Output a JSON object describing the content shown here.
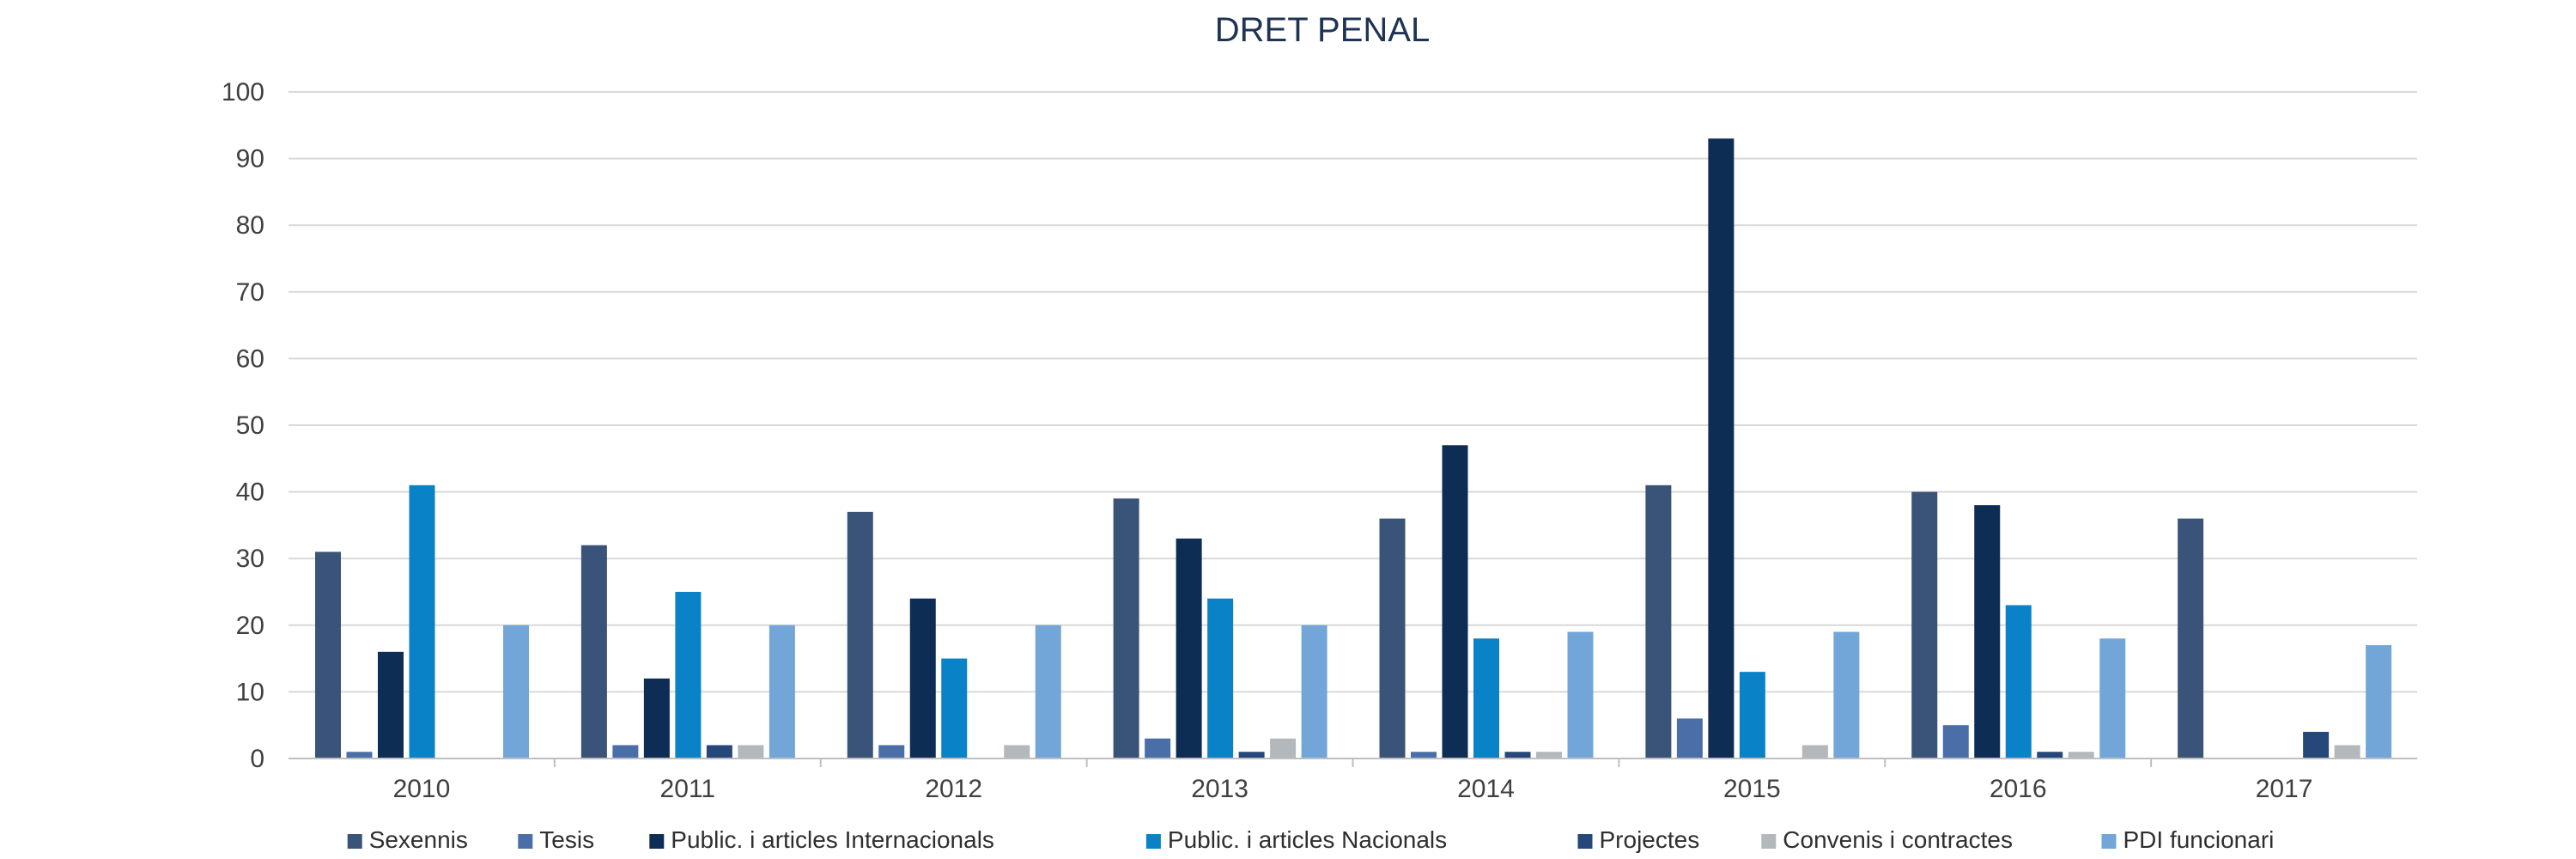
{
  "chart_data": {
    "type": "bar",
    "title": "DRET PENAL",
    "xlabel": "",
    "ylabel": "",
    "ylim": [
      0,
      100
    ],
    "yticks": [
      0,
      10,
      20,
      30,
      40,
      50,
      60,
      70,
      80,
      90,
      100
    ],
    "grid": true,
    "legend_position": "bottom",
    "categories": [
      "2010",
      "2011",
      "2012",
      "2013",
      "2014",
      "2015",
      "2016",
      "2017"
    ],
    "series": [
      {
        "name": "Sexennis",
        "color": "#3a5378",
        "values": [
          31,
          32,
          37,
          39,
          36,
          41,
          40,
          36
        ]
      },
      {
        "name": "Tesis",
        "color": "#4a6fa8",
        "values": [
          1,
          2,
          2,
          3,
          1,
          6,
          5,
          0
        ]
      },
      {
        "name": "Public. i articles Internacionals",
        "color": "#0d2d55",
        "values": [
          16,
          12,
          24,
          33,
          47,
          93,
          38,
          0
        ]
      },
      {
        "name": "Public. i articles Nacionals",
        "color": "#0a82c8",
        "values": [
          41,
          25,
          15,
          24,
          18,
          13,
          23,
          0
        ]
      },
      {
        "name": "Projectes",
        "color": "#26477a",
        "values": [
          0,
          2,
          0,
          1,
          1,
          0,
          1,
          4
        ]
      },
      {
        "name": "Convenis i contractes",
        "color": "#b3b8bd",
        "values": [
          0,
          2,
          2,
          3,
          1,
          2,
          1,
          2
        ]
      },
      {
        "name": "PDI funcionari",
        "color": "#72a6d9",
        "values": [
          20,
          20,
          20,
          20,
          19,
          19,
          18,
          17
        ]
      }
    ]
  }
}
